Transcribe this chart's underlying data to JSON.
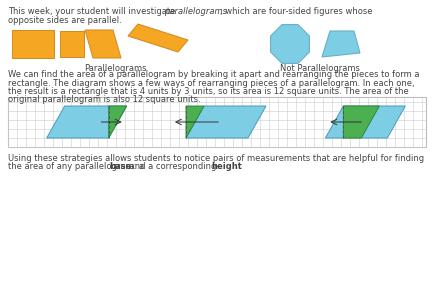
{
  "bg_color": "#ffffff",
  "text_color": "#444444",
  "orange_color": "#F5A623",
  "blue_shape_color": "#7DCDE4",
  "blue_para_color": "#7DCDE4",
  "green_color": "#4CAF50",
  "grid_color": "#cccccc",
  "border_color": "#aaaaaa",
  "intro_line1": "This week, your student will investigate ",
  "intro_italic": "parallelograms",
  "intro_line1b": ", which are four-sided figures whose",
  "intro_line2": "opposite sides are parallel.",
  "label_parallelograms": "Parallelograms",
  "label_not": "Not Parallelograms",
  "middle_text_line1": "We can find the area of a parallelogram by breaking it apart and rearranging the pieces to form a",
  "middle_text_line2": "rectangle. The diagram shows a few ways of rearranging pieces of a parallelogram. In each one,",
  "middle_text_line3": "the result is a rectangle that is 4 units by 3 units, so its area is 12 square units. The area of the",
  "middle_text_line4": "original parallelogram is also 12 square units.",
  "bottom_line1": "Using these strategies allows students to notice pairs of measurements that are helpful for finding",
  "bottom_line2_pre": "the area of any parallelogram: a ",
  "bottom_bold1": "base",
  "bottom_mid": " and a corresponding ",
  "bottom_bold2": "height",
  "bottom_end": "."
}
